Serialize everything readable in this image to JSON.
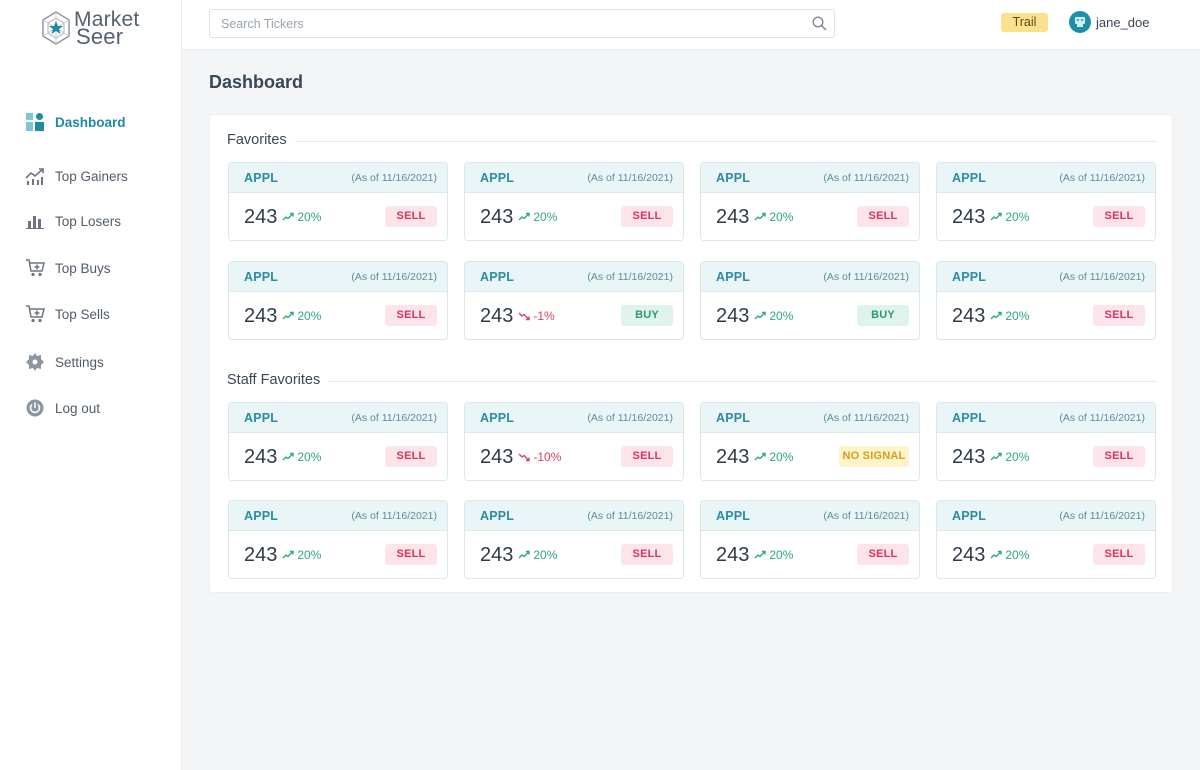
{
  "brand": {
    "line1": "Market",
    "line2": "Seer"
  },
  "sidebar": {
    "items": [
      {
        "label": "Dashboard",
        "icon": "dashboard-icon",
        "active": true
      },
      {
        "label": "Top Gainers",
        "icon": "trending-up-icon"
      },
      {
        "label": "Top Losers",
        "icon": "bar-chart-icon"
      },
      {
        "label": "Top Buys",
        "icon": "cart-add-icon"
      },
      {
        "label": "Top Sells",
        "icon": "cart-remove-icon"
      },
      {
        "label": "Settings",
        "icon": "gear-icon"
      },
      {
        "label": "Log out",
        "icon": "power-icon"
      }
    ]
  },
  "header": {
    "search_placeholder": "Search Tickers",
    "plan_badge": "Trail",
    "username": "jane_doe"
  },
  "page_title": "Dashboard",
  "sections": [
    {
      "title": "Favorites",
      "cards": [
        {
          "ticker": "APPL",
          "as_of": "(As of 11/16/2021)",
          "price": "243",
          "change": "20%",
          "direction": "up",
          "signal": "SELL"
        },
        {
          "ticker": "APPL",
          "as_of": "(As of 11/16/2021)",
          "price": "243",
          "change": "20%",
          "direction": "up",
          "signal": "SELL"
        },
        {
          "ticker": "APPL",
          "as_of": "(As of 11/16/2021)",
          "price": "243",
          "change": "20%",
          "direction": "up",
          "signal": "SELL"
        },
        {
          "ticker": "APPL",
          "as_of": "(As of 11/16/2021)",
          "price": "243",
          "change": "20%",
          "direction": "up",
          "signal": "SELL"
        },
        {
          "ticker": "APPL",
          "as_of": "(As of 11/16/2021)",
          "price": "243",
          "change": "20%",
          "direction": "up",
          "signal": "SELL"
        },
        {
          "ticker": "APPL",
          "as_of": "(As of 11/16/2021)",
          "price": "243",
          "change": "-1%",
          "direction": "down",
          "signal": "BUY"
        },
        {
          "ticker": "APPL",
          "as_of": "(As of 11/16/2021)",
          "price": "243",
          "change": "20%",
          "direction": "up",
          "signal": "BUY"
        },
        {
          "ticker": "APPL",
          "as_of": "(As of 11/16/2021)",
          "price": "243",
          "change": "20%",
          "direction": "up",
          "signal": "SELL"
        }
      ]
    },
    {
      "title": "Staff Favorites",
      "cards": [
        {
          "ticker": "APPL",
          "as_of": "(As of 11/16/2021)",
          "price": "243",
          "change": "20%",
          "direction": "up",
          "signal": "SELL"
        },
        {
          "ticker": "APPL",
          "as_of": "(As of 11/16/2021)",
          "price": "243",
          "change": "-10%",
          "direction": "down",
          "signal": "SELL"
        },
        {
          "ticker": "APPL",
          "as_of": "(As of 11/16/2021)",
          "price": "243",
          "change": "20%",
          "direction": "up",
          "signal": "NO SIGNAL"
        },
        {
          "ticker": "APPL",
          "as_of": "(As of 11/16/2021)",
          "price": "243",
          "change": "20%",
          "direction": "up",
          "signal": "SELL"
        },
        {
          "ticker": "APPL",
          "as_of": "(As of 11/16/2021)",
          "price": "243",
          "change": "20%",
          "direction": "up",
          "signal": "SELL"
        },
        {
          "ticker": "APPL",
          "as_of": "(As of 11/16/2021)",
          "price": "243",
          "change": "20%",
          "direction": "up",
          "signal": "SELL"
        },
        {
          "ticker": "APPL",
          "as_of": "(As of 11/16/2021)",
          "price": "243",
          "change": "20%",
          "direction": "up",
          "signal": "SELL"
        },
        {
          "ticker": "APPL",
          "as_of": "(As of 11/16/2021)",
          "price": "243",
          "change": "20%",
          "direction": "up",
          "signal": "SELL"
        }
      ]
    }
  ],
  "colors": {
    "accent": "#1e8aa3",
    "up": "#2ea87b",
    "down": "#d9405f",
    "sell_bg": "#fde4ea",
    "buy_bg": "#dff3ec",
    "nosignal_bg": "#fff3c9",
    "badge": "#fbe18d"
  }
}
